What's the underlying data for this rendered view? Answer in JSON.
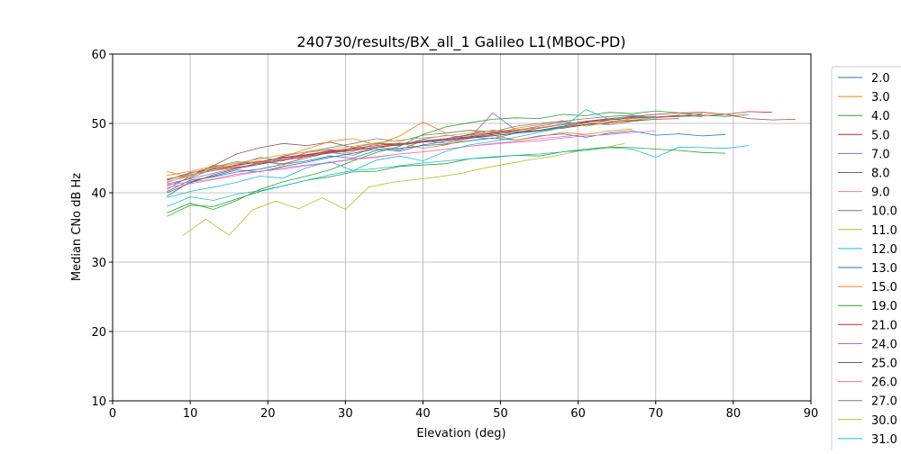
{
  "chart_data": {
    "type": "line",
    "title": "240730/results/BX_all_1 Galileo L1(MBOC-PD)",
    "xlabel": "Elevation (deg)",
    "ylabel": "Median CNo dB Hz",
    "xlim": [
      0,
      90
    ],
    "ylim": [
      10,
      60
    ],
    "xticks": [
      "0",
      "10",
      "20",
      "30",
      "40",
      "50",
      "60",
      "70",
      "80",
      "90"
    ],
    "yticks": [
      "10",
      "20",
      "30",
      "40",
      "50",
      "60"
    ],
    "grid": true,
    "legend_position": "right, outside plot",
    "colors": [
      "#1f77b4",
      "#ff7f0e",
      "#2ca02c",
      "#d62728",
      "#9467bd",
      "#8c564b",
      "#e377c2",
      "#7f7f7f",
      "#bcbd22",
      "#17becf"
    ],
    "series": [
      {
        "name": "2.0",
        "x_start": 7,
        "x_step": 3,
        "values": [
          40.2,
          41.8,
          42.3,
          43.0,
          43.4,
          44.1,
          44.6,
          45.3,
          45.0,
          46.1,
          46.4,
          46.8,
          47.0,
          47.5,
          47.9,
          47.6,
          48.2,
          48.5,
          48.0,
          48.6,
          48.9,
          48.3,
          48.5,
          48.2,
          48.4
        ]
      },
      {
        "name": "3.0",
        "x_start": 7,
        "x_step": 3,
        "values": [
          42.5,
          43.1,
          43.8,
          44.2,
          44.6,
          44.0,
          45.3,
          46.1,
          45.7,
          46.5,
          47.2,
          46.4,
          46.9,
          47.8,
          48.3,
          47.6,
          48.1,
          48.7,
          48.4,
          48.9,
          49.2
        ]
      },
      {
        "name": "4.0",
        "x_start": 7,
        "x_step": 3,
        "values": [
          36.6,
          38.2,
          38.0,
          39.1,
          40.2,
          41.0,
          41.8,
          42.3,
          43.0,
          43.1,
          43.8,
          44.0,
          44.2,
          44.9,
          45.1,
          45.4,
          45.3,
          45.9,
          46.3,
          46.6,
          46.5,
          46.3,
          46.1,
          45.8,
          45.7
        ]
      },
      {
        "name": "5.0",
        "x_start": 7,
        "x_step": 3,
        "values": [
          41.5,
          42.6,
          43.2,
          43.7,
          44.1,
          45.0,
          45.4,
          45.9,
          46.3,
          46.5,
          46.9,
          47.3,
          47.6,
          48.0,
          48.2,
          48.6,
          49.0,
          49.3,
          49.8,
          50.1,
          50.4,
          50.6,
          50.7
        ]
      },
      {
        "name": "7.0",
        "x_start": 7,
        "x_step": 3,
        "values": [
          41.0,
          42.1,
          43.5,
          44.0,
          45.1,
          44.6,
          45.8,
          46.2,
          46.0,
          47.1,
          46.8,
          47.7,
          48.3,
          47.9,
          51.5,
          49.0,
          49.6,
          50.2,
          49.8,
          50.5,
          50.9,
          51.0
        ]
      },
      {
        "name": "8.0",
        "x_start": 7,
        "x_step": 3,
        "values": [
          40.5,
          42.4,
          43.9,
          45.6,
          46.5,
          47.1,
          46.8,
          47.3,
          46.5,
          47.2,
          47.0,
          47.5,
          47.8,
          48.4,
          49.0,
          48.7,
          49.3,
          49.8,
          50.2,
          50.6,
          50.4,
          50.9,
          51.2,
          51.0
        ]
      },
      {
        "name": "9.0",
        "x_start": 7,
        "x_step": 3,
        "values": [
          41.2,
          41.5,
          42.0,
          42.7,
          43.1,
          43.6,
          44.0,
          44.4,
          44.9,
          45.2,
          45.6,
          45.9,
          46.3,
          46.7,
          47.0,
          47.3,
          47.5,
          47.9,
          48.2,
          48.4,
          48.7,
          48.9
        ]
      },
      {
        "name": "10.0",
        "x_start": 7,
        "x_step": 3,
        "values": [
          42.0,
          42.6,
          43.2,
          43.9,
          44.5,
          44.2,
          45.0,
          45.8,
          45.4,
          46.6,
          46.2,
          47.5,
          47.1,
          48.0,
          47.8,
          48.6,
          48.9,
          49.4,
          50.1,
          49.8,
          50.3,
          50.6
        ]
      },
      {
        "name": "11.0",
        "x_start": 9,
        "x_step": 3,
        "values": [
          33.8,
          36.2,
          33.9,
          37.5,
          38.8,
          37.7,
          39.3,
          37.6,
          40.8,
          41.5,
          41.9,
          42.3,
          42.8,
          43.6,
          44.2,
          44.8,
          45.3,
          46.0,
          46.4,
          47.1
        ]
      },
      {
        "name": "12.0",
        "x_start": 7,
        "x_step": 3,
        "values": [
          38.0,
          39.4,
          38.9,
          39.8,
          40.3,
          41.0,
          41.8,
          42.6,
          43.2,
          43.5,
          43.9,
          44.3,
          44.6,
          44.9,
          45.2,
          45.4,
          45.6,
          45.9,
          46.1,
          46.5,
          46.3,
          45.1,
          46.6,
          46.5,
          46.4,
          46.8
        ]
      },
      {
        "name": "13.0",
        "x_start": 7,
        "x_step": 3,
        "values": [
          39.5,
          41.6,
          42.4,
          43.3,
          43.0,
          43.8,
          44.4,
          45.1,
          45.7,
          46.3,
          46.0,
          46.9,
          47.4,
          47.9,
          48.2,
          48.6,
          48.9,
          49.5,
          49.8,
          50.0
        ]
      },
      {
        "name": "15.0",
        "x_start": 7,
        "x_step": 3,
        "values": [
          43.1,
          42.2,
          44.0,
          43.5,
          44.4,
          45.2,
          46.3,
          47.4,
          47.8,
          46.9,
          48.2,
          50.2,
          48.6,
          49.0,
          48.4,
          49.3,
          49.8,
          50.4,
          49.6,
          50.2,
          50.7,
          50.9
        ]
      },
      {
        "name": "19.0",
        "x_start": 7,
        "x_step": 3,
        "values": [
          37.1,
          38.5,
          37.6,
          38.9,
          40.5,
          41.6,
          42.4,
          43.3,
          44.6,
          45.8,
          46.7,
          48.4,
          49.5,
          50.1,
          50.6,
          50.8,
          50.7,
          51.3,
          51.1,
          51.6,
          51.4,
          51.8,
          51.5,
          51.2,
          51.0,
          51.3
        ]
      },
      {
        "name": "21.0",
        "x_start": 7,
        "x_step": 3,
        "values": [
          41.8,
          42.9,
          43.4,
          44.0,
          44.5,
          45.1,
          45.5,
          46.0,
          46.4,
          46.8,
          47.1,
          47.3,
          47.7,
          48.1,
          48.6,
          49.0,
          49.4,
          49.8,
          50.3,
          50.7,
          51.0,
          51.3,
          51.5,
          51.6,
          51.3,
          51.7,
          51.6
        ]
      },
      {
        "name": "24.0",
        "x_start": 7,
        "x_step": 3,
        "values": [
          41.3,
          42.0,
          42.8,
          43.6,
          44.3,
          44.8,
          45.3,
          45.7,
          46.1,
          46.5,
          47.0,
          47.4,
          47.8,
          48.3,
          48.7,
          49.1,
          49.4,
          49.9,
          50.2,
          50.5
        ]
      },
      {
        "name": "25.0",
        "x_start": 7,
        "x_step": 3,
        "values": [
          40.0,
          41.4,
          42.6,
          43.5,
          44.1,
          44.7,
          45.2,
          45.8,
          46.1,
          46.6,
          46.9,
          47.3,
          47.6,
          48.0,
          48.4,
          48.8,
          49.0,
          49.6,
          50.2,
          50.5,
          50.8,
          50.9,
          51.0,
          51.1,
          51.3,
          50.7,
          50.5,
          50.6
        ]
      },
      {
        "name": "26.0",
        "x_start": 7,
        "x_step": 3,
        "values": [
          40.8,
          41.3,
          41.9,
          42.5,
          43.1,
          43.4,
          43.9,
          44.3,
          44.8,
          45.1,
          45.6,
          45.9,
          46.3,
          46.7,
          47.1,
          47.4,
          47.8,
          48.1,
          48.4
        ]
      },
      {
        "name": "27.0",
        "x_start": 7,
        "x_step": 3,
        "values": [
          41.9,
          42.8,
          43.7,
          44.5,
          44.2,
          45.3,
          45.9,
          46.5,
          47.1,
          47.8,
          47.4,
          48.3,
          48.6,
          49.0,
          48.8,
          49.6,
          50.0,
          50.3,
          50.7,
          51.0,
          51.2,
          50.8,
          51.1,
          51.4
        ]
      },
      {
        "name": "30.0",
        "x_start": 7,
        "x_step": 3,
        "values": [
          41.6,
          42.4,
          43.6,
          44.3,
          44.9,
          45.5,
          45.8,
          46.3,
          46.7,
          47.2,
          47.6,
          47.9,
          48.2,
          48.6,
          48.9,
          49.1,
          49.4,
          49.8,
          50.0,
          50.3,
          50.5,
          50.8
        ]
      },
      {
        "name": "31.0",
        "x_start": 7,
        "x_step": 3,
        "values": [
          39.3,
          40.2,
          40.8,
          41.5,
          42.4,
          42.1,
          43.6,
          44.5,
          43.2,
          44.7,
          45.3,
          44.6,
          46.0,
          46.9,
          47.4,
          48.0,
          48.7,
          49.4,
          52.0,
          50.6,
          51.1,
          50.8
        ]
      }
    ]
  }
}
